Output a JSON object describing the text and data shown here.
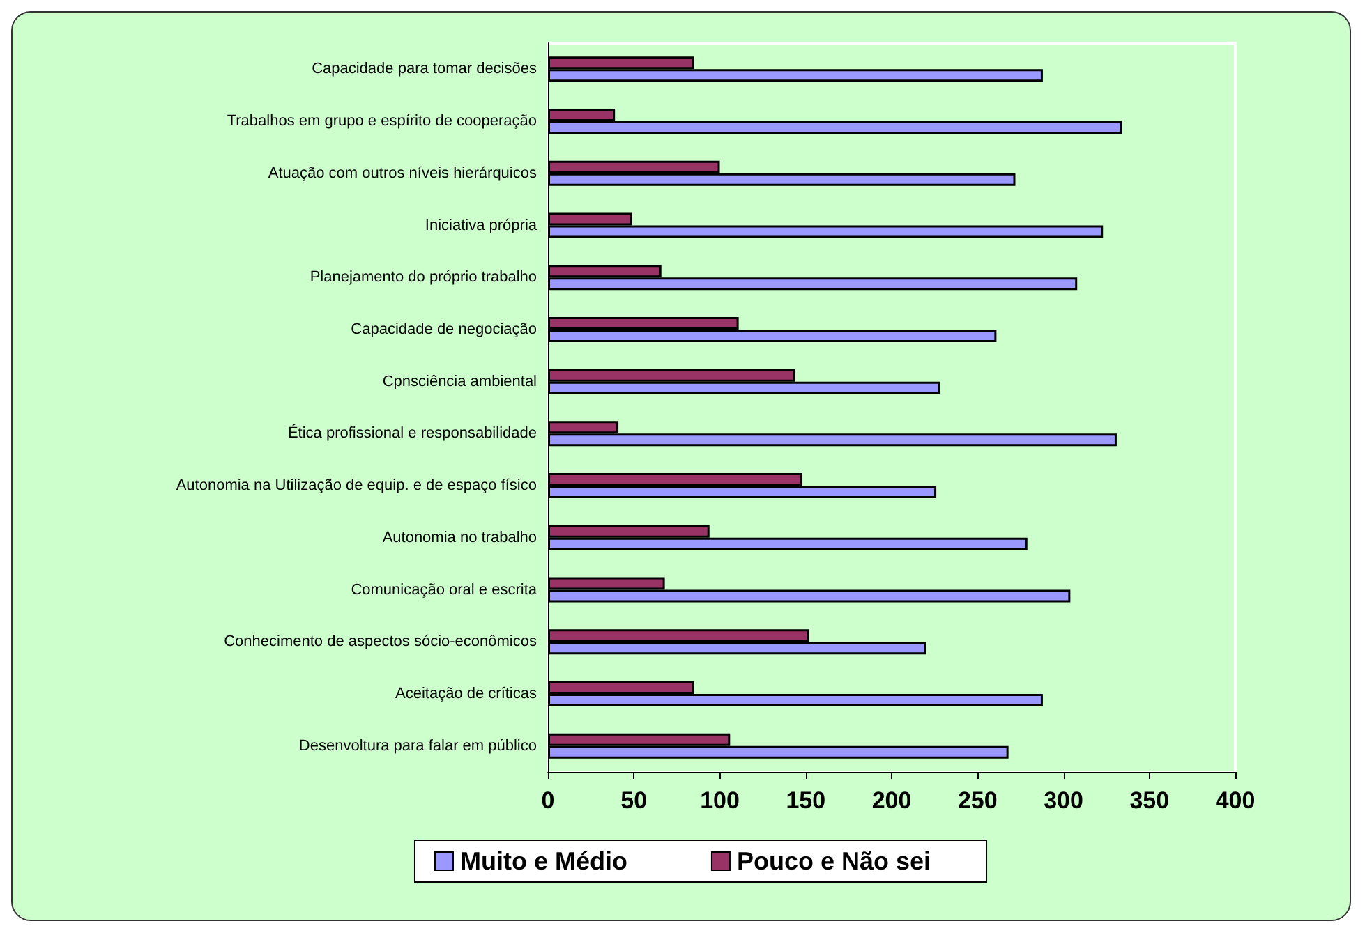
{
  "chart_data": {
    "type": "bar",
    "orientation": "horizontal",
    "categories": [
      "Capacidade para tomar decisões",
      "Trabalhos em grupo e espírito de cooperação",
      "Atuação com outros níveis hierárquicos",
      "Iniciativa própria",
      "Planejamento do próprio trabalho",
      "Capacidade de negociação",
      "Cpnsciência ambiental",
      "Ética profissional e responsabilidade",
      "Autonomia na Utilização de equip. e de espaço físico",
      "Autonomia no trabalho",
      "Comunicação oral e escrita",
      "Conhecimento de aspectos sócio-econômicos",
      "Aceitação de críticas",
      "Desenvoltura para falar em público"
    ],
    "series": [
      {
        "name": "Muito e Médio",
        "color": "#9999ff",
        "values": [
          288,
          334,
          272,
          323,
          308,
          261,
          228,
          331,
          226,
          279,
          304,
          220,
          288,
          268
        ]
      },
      {
        "name": "Pouco e Não sei",
        "color": "#993366",
        "values": [
          85,
          39,
          100,
          49,
          66,
          111,
          144,
          41,
          148,
          94,
          68,
          152,
          85,
          106
        ]
      }
    ],
    "xlim": [
      0,
      400
    ],
    "xticks": [
      0,
      50,
      100,
      150,
      200,
      250,
      300,
      350,
      400
    ],
    "grid": false,
    "legend": "bottom"
  }
}
